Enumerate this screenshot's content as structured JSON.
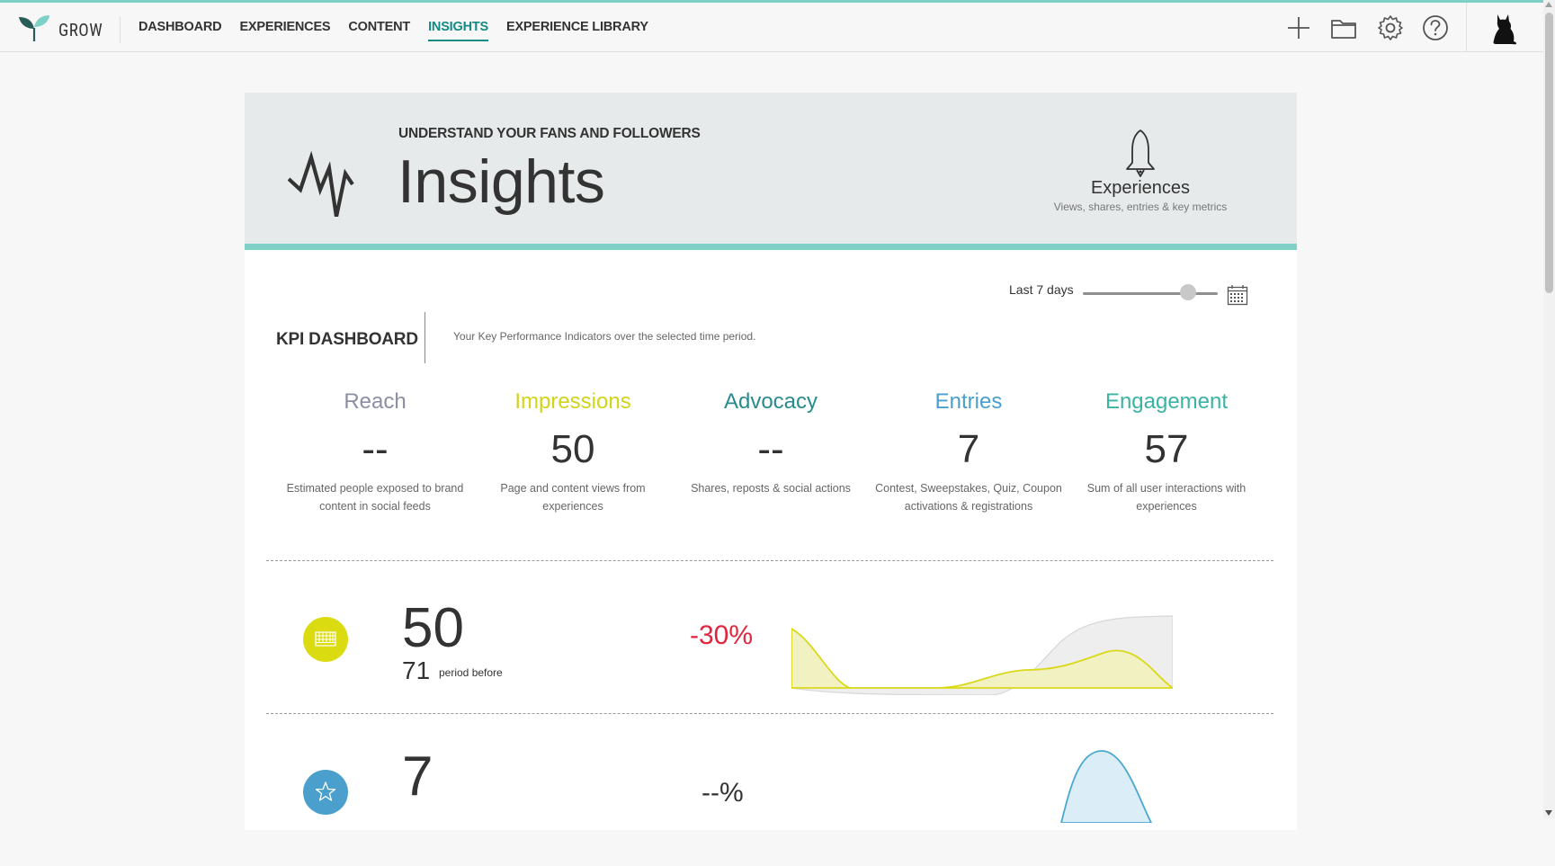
{
  "header": {
    "brand": "GROW",
    "nav": [
      {
        "label": "DASHBOARD",
        "active": false
      },
      {
        "label": "EXPERIENCES",
        "active": false
      },
      {
        "label": "CONTENT",
        "active": false
      },
      {
        "label": "INSIGHTS",
        "active": true
      },
      {
        "label": "EXPERIENCE LIBRARY",
        "active": false
      }
    ],
    "icons": [
      "plus-icon",
      "folder-icon",
      "gear-icon",
      "help-icon",
      "cat-avatar-icon"
    ]
  },
  "hero": {
    "eyebrow": "UNDERSTAND YOUR FANS AND FOLLOWERS",
    "title": "Insights",
    "right_title": "Experiences",
    "right_subtitle": "Views, shares, entries & key metrics"
  },
  "filter": {
    "period_label": "Last 7 days",
    "slider_fraction": 0.78
  },
  "kpi": {
    "title": "KPI DASHBOARD",
    "description": "Your Key Performance Indicators over the selected time period.",
    "metrics": [
      {
        "name": "Reach",
        "value": "--",
        "desc": "Estimated people exposed to brand content in social feeds",
        "color": "#8c8fa3"
      },
      {
        "name": "Impressions",
        "value": "50",
        "desc": "Page and content views from experiences",
        "color": "#d3d41a"
      },
      {
        "name": "Advocacy",
        "value": "--",
        "desc": "Shares, reposts & social actions",
        "color": "#2a8b8e"
      },
      {
        "name": "Entries",
        "value": "7",
        "desc": "Contest, Sweepstakes, Quiz, Coupon activations & registrations",
        "color": "#4a9fcc"
      },
      {
        "name": "Engagement",
        "value": "57",
        "desc": "Sum of all user interactions with experiences",
        "color": "#3bb3a4"
      }
    ]
  },
  "stats": [
    {
      "value": "50",
      "previous": "71",
      "previous_label": "period before",
      "change": "-30%",
      "change_color": "#e0263d",
      "icon": "keyboard-icon",
      "icon_color": "#dbdb12",
      "series_color": "#d9d91a"
    },
    {
      "value": "7",
      "change": "--%",
      "change_color": "#333333",
      "icon": "star-icon",
      "icon_color": "#4a9fcc",
      "series_color": "#4aa8d0"
    }
  ]
}
